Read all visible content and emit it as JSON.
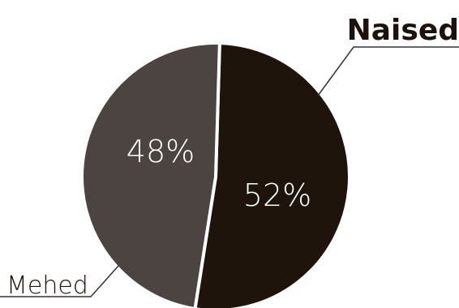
{
  "chart_data": {
    "type": "pie",
    "slices": [
      {
        "label": "Naised",
        "value": 52,
        "value_label": "52%",
        "color": "#1e140b"
      },
      {
        "label": "Mehed",
        "value": 48,
        "value_label": "48%",
        "color": "#4b4440"
      }
    ],
    "start_angle_deg": 1.7,
    "separator_color": "#ffffff"
  }
}
